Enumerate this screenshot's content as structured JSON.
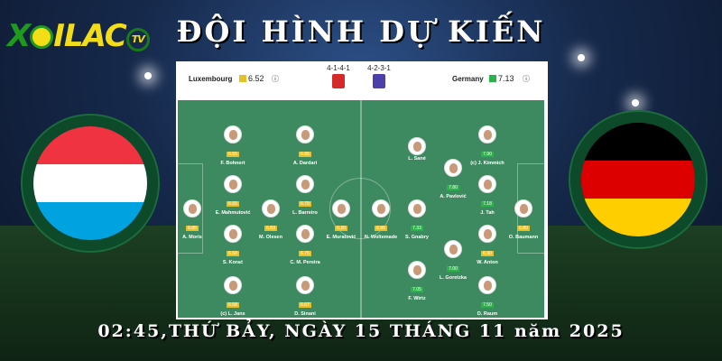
{
  "logo": {
    "text": "XOILAC",
    "tv": "TV"
  },
  "title": "ĐỘI HÌNH DỰ KIẾN",
  "date_line": "02:45,THỨ BẢY, NGÀY 15 THÁNG 11 năm 2025",
  "colors": {
    "rating_high": "#2ab34a",
    "rating_mid": "#e6c02a",
    "pitch": "#3d8a60"
  },
  "home": {
    "name": "Luxembourg",
    "rating": "6.52",
    "formation": "4-1-4-1",
    "shirt_color": "#d42a2a",
    "flag": [
      "#ef3340",
      "#ffffff",
      "#00a3e0"
    ],
    "players": [
      {
        "name": "F. Bohnert",
        "rating": "6.55"
      },
      {
        "name": "A. Dardari",
        "rating": "6.85"
      },
      {
        "name": "E. Mahmutović",
        "rating": "6.55"
      },
      {
        "name": "L. Barreiro",
        "rating": "6.79"
      },
      {
        "name": "A. Moris",
        "rating": "6.85"
      },
      {
        "name": "M. Olesen",
        "rating": "6.83"
      },
      {
        "name": "E. Muratović",
        "rating": "6.20"
      },
      {
        "name": "S. Korać",
        "rating": "6.50"
      },
      {
        "name": "C. M. Pereira",
        "rating": "6.75"
      },
      {
        "name": "(c) L. Jans",
        "rating": "6.58"
      },
      {
        "name": "D. Sinani",
        "rating": "6.67"
      }
    ]
  },
  "away": {
    "name": "Germany",
    "rating": "7.13",
    "formation": "4-2-3-1",
    "shirt_color": "#4b3fa8",
    "flag": [
      "#000000",
      "#dd0000",
      "#ffce00"
    ],
    "players": [
      {
        "name": "(c) J. Kimmich",
        "rating": "7.90"
      },
      {
        "name": "L. Sané",
        "rating": ""
      },
      {
        "name": "A. Pavlović",
        "rating": "7.80"
      },
      {
        "name": "J. Tah",
        "rating": "7.18"
      },
      {
        "name": "N. Woltemade",
        "rating": "6.95"
      },
      {
        "name": "S. Gnabry",
        "rating": "7.33"
      },
      {
        "name": "O. Baumann",
        "rating": "6.80"
      },
      {
        "name": "W. Anton",
        "rating": "6.90"
      },
      {
        "name": "L. Goretzka",
        "rating": "7.00"
      },
      {
        "name": "F. Wirtz",
        "rating": "7.05"
      },
      {
        "name": "D. Raum",
        "rating": "7.50"
      }
    ]
  }
}
